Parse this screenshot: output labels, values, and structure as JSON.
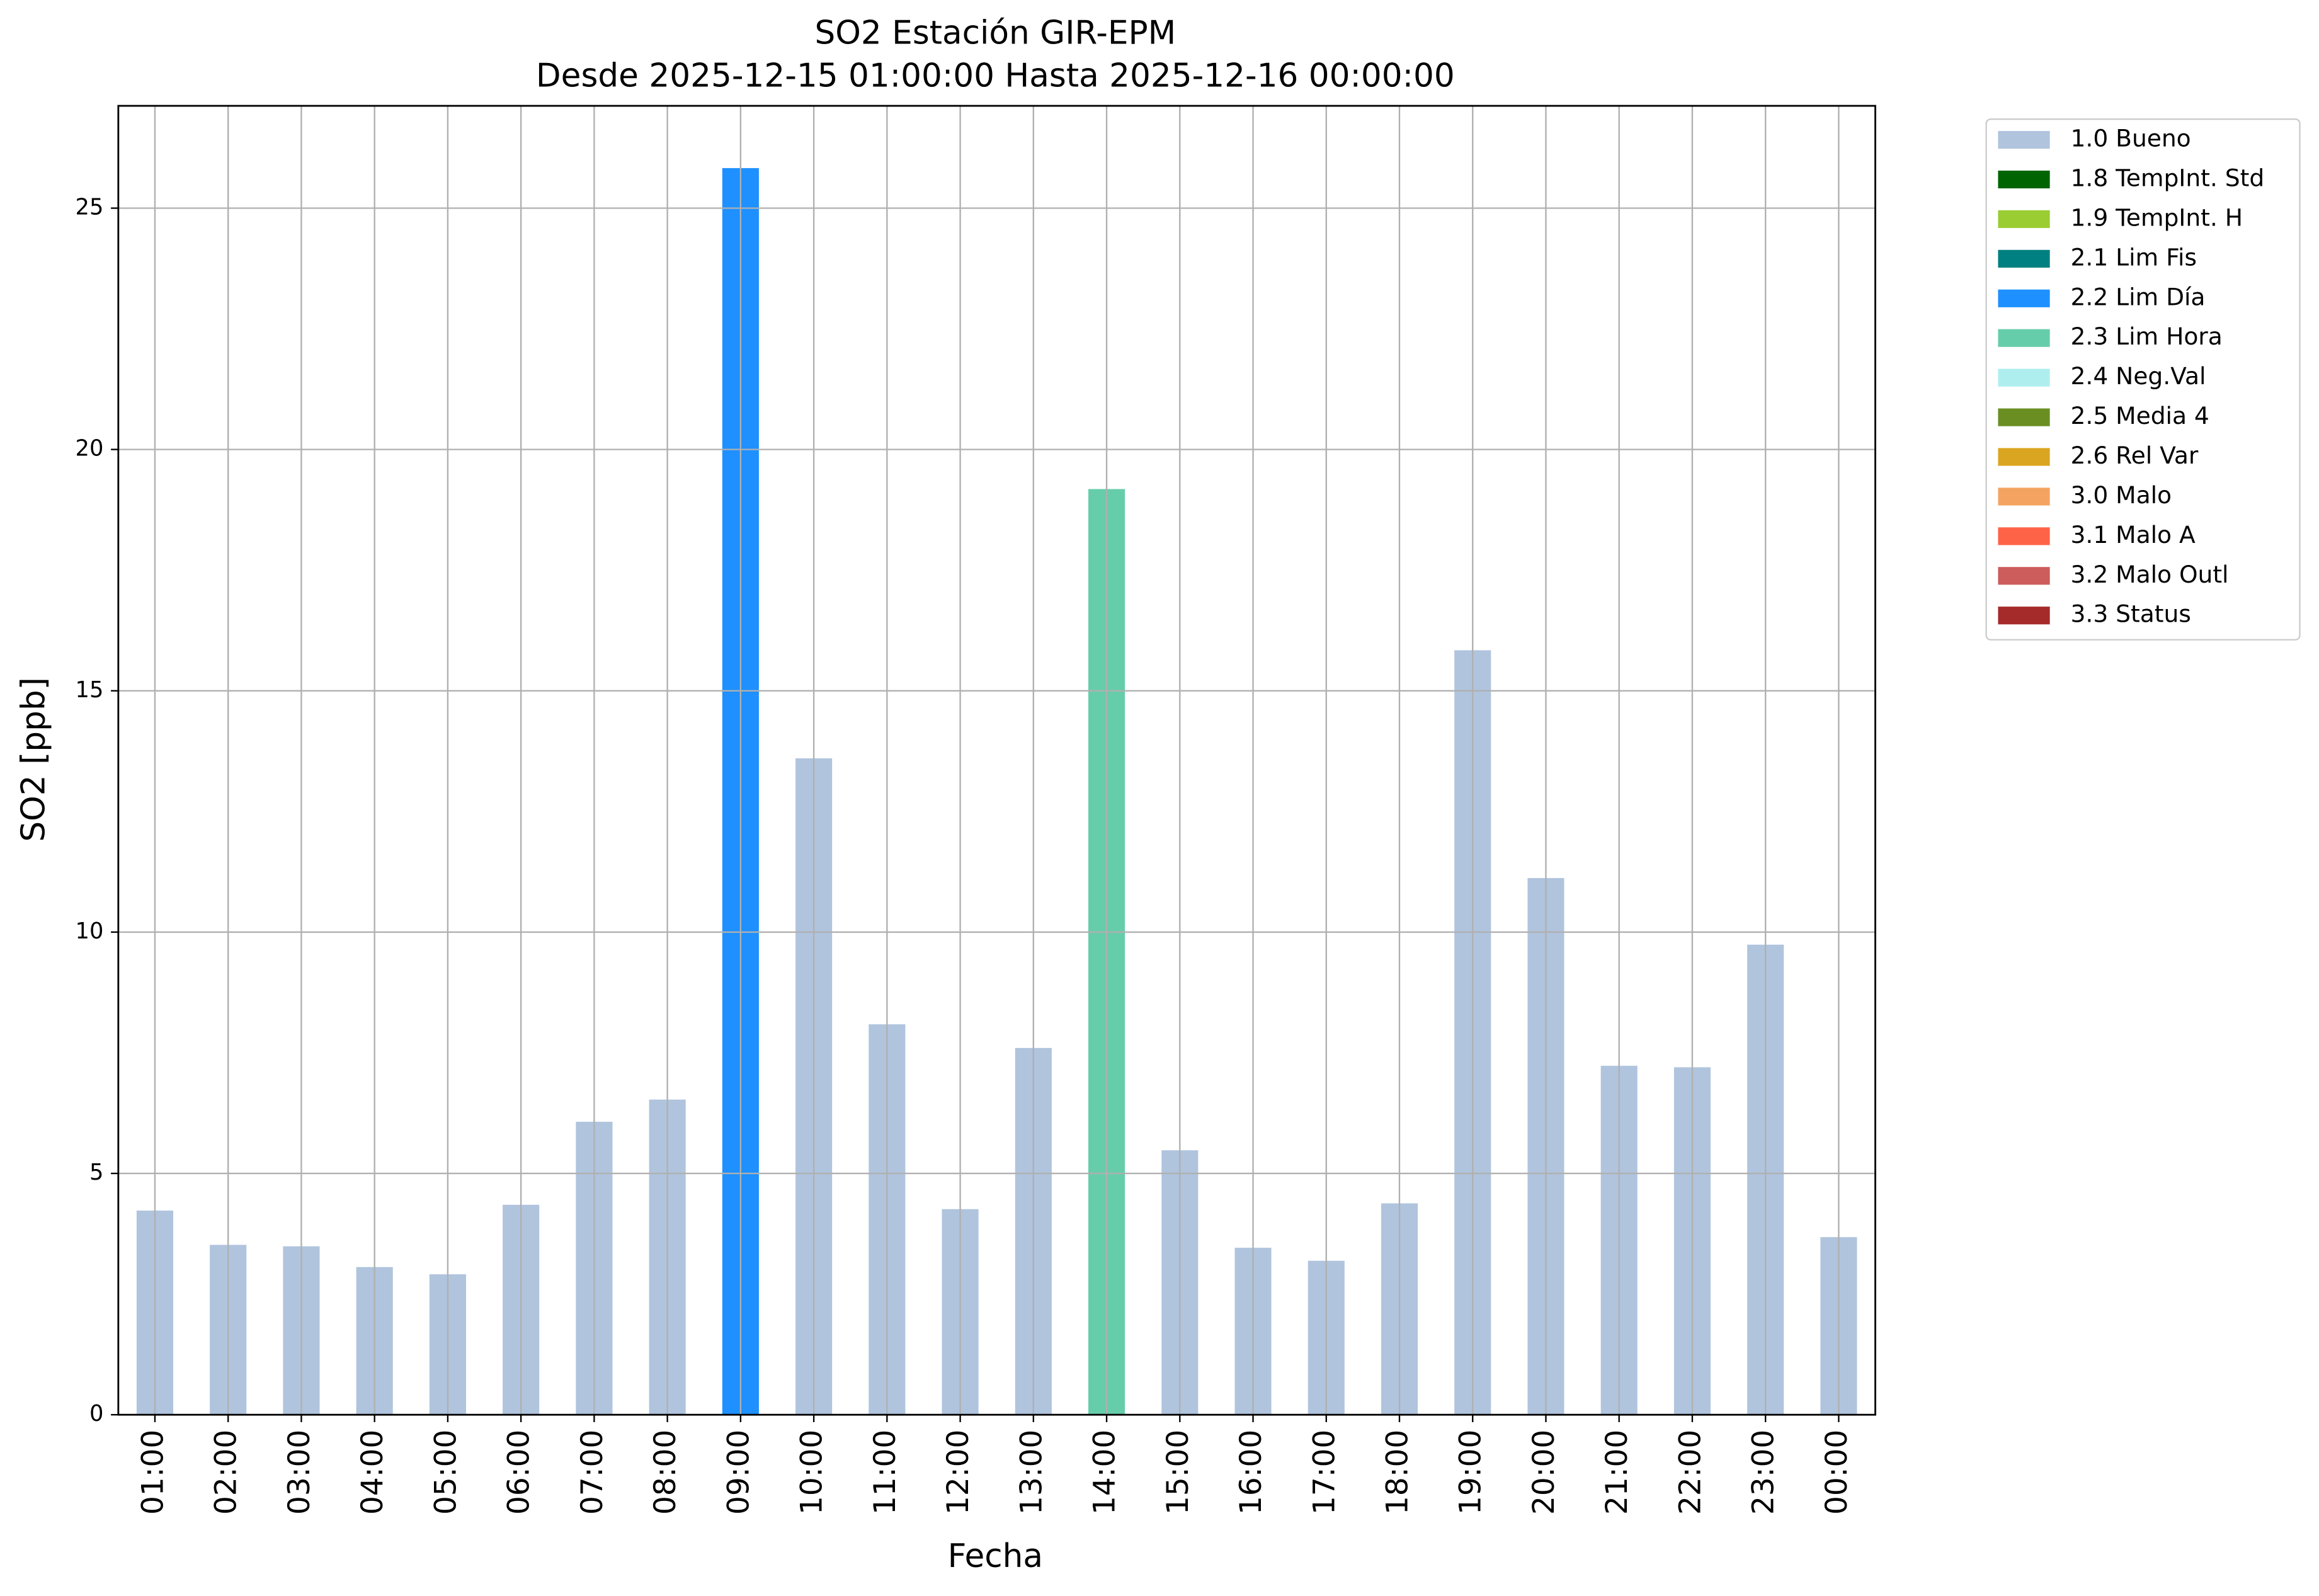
{
  "chart_data": {
    "type": "bar",
    "stacked": true,
    "title": "SO2 Estación GIR-EPM",
    "subtitle": "Desde 2025-12-15 01:00:00 Hasta 2025-12-16 00:00:00",
    "x_label": "Fecha",
    "y_label": "SO2 [ppb]",
    "categories": [
      "01:00",
      "02:00",
      "03:00",
      "04:00",
      "05:00",
      "06:00",
      "07:00",
      "08:00",
      "09:00",
      "10:00",
      "11:00",
      "12:00",
      "13:00",
      "14:00",
      "15:00",
      "16:00",
      "17:00",
      "18:00",
      "19:00",
      "20:00",
      "21:00",
      "22:00",
      "23:00",
      "00:00"
    ],
    "series": [
      {
        "name": "1.0 Bueno",
        "color": "#b0c4de",
        "values": [
          4.23,
          3.52,
          3.49,
          3.06,
          2.91,
          4.35,
          6.07,
          6.53,
          null,
          13.6,
          8.09,
          4.26,
          7.6,
          null,
          5.48,
          3.46,
          3.19,
          4.38,
          15.84,
          11.12,
          7.23,
          7.2,
          9.74,
          3.68
        ]
      },
      {
        "name": "1.8 TempInt. Std",
        "color": "#006400",
        "values": [
          null,
          null,
          null,
          null,
          null,
          null,
          null,
          null,
          null,
          null,
          null,
          null,
          null,
          null,
          null,
          null,
          null,
          null,
          null,
          null,
          null,
          null,
          null,
          null
        ]
      },
      {
        "name": "1.9 TempInt. H",
        "color": "#9acd32",
        "values": [
          null,
          null,
          null,
          null,
          null,
          null,
          null,
          null,
          null,
          null,
          null,
          null,
          null,
          null,
          null,
          null,
          null,
          null,
          null,
          null,
          null,
          null,
          null,
          null
        ]
      },
      {
        "name": "2.1 Lim Fis",
        "color": "#008080",
        "values": [
          null,
          null,
          null,
          null,
          null,
          null,
          null,
          null,
          null,
          null,
          null,
          null,
          null,
          null,
          null,
          null,
          null,
          null,
          null,
          null,
          null,
          null,
          null,
          null
        ]
      },
      {
        "name": "2.2 Lim Día",
        "color": "#1e90ff",
        "values": [
          null,
          null,
          null,
          null,
          null,
          null,
          null,
          null,
          25.83,
          null,
          null,
          null,
          null,
          null,
          null,
          null,
          null,
          null,
          null,
          null,
          null,
          null,
          null,
          null
        ]
      },
      {
        "name": "2.3 Lim Hora",
        "color": "#66cdaa",
        "values": [
          null,
          null,
          null,
          null,
          null,
          null,
          null,
          null,
          null,
          null,
          null,
          null,
          null,
          19.18,
          null,
          null,
          null,
          null,
          null,
          null,
          null,
          null,
          null,
          null
        ]
      },
      {
        "name": "2.4 Neg.Val",
        "color": "#afeeee",
        "values": [
          null,
          null,
          null,
          null,
          null,
          null,
          null,
          null,
          null,
          null,
          null,
          null,
          null,
          null,
          null,
          null,
          null,
          null,
          null,
          null,
          null,
          null,
          null,
          null
        ]
      },
      {
        "name": "2.5 Media 4",
        "color": "#6b8e23",
        "values": [
          null,
          null,
          null,
          null,
          null,
          null,
          null,
          null,
          null,
          null,
          null,
          null,
          null,
          null,
          null,
          null,
          null,
          null,
          null,
          null,
          null,
          null,
          null,
          null
        ]
      },
      {
        "name": "2.6 Rel Var",
        "color": "#daa520",
        "values": [
          null,
          null,
          null,
          null,
          null,
          null,
          null,
          null,
          null,
          null,
          null,
          null,
          null,
          null,
          null,
          null,
          null,
          null,
          null,
          null,
          null,
          null,
          null,
          null
        ]
      },
      {
        "name": "3.0 Malo",
        "color": "#f4a460",
        "values": [
          null,
          null,
          null,
          null,
          null,
          null,
          null,
          null,
          null,
          null,
          null,
          null,
          null,
          null,
          null,
          null,
          null,
          null,
          null,
          null,
          null,
          null,
          null,
          null
        ]
      },
      {
        "name": "3.1 Malo A",
        "color": "#ff6347",
        "values": [
          null,
          null,
          null,
          null,
          null,
          null,
          null,
          null,
          null,
          null,
          null,
          null,
          null,
          null,
          null,
          null,
          null,
          null,
          null,
          null,
          null,
          null,
          null,
          null
        ]
      },
      {
        "name": "3.2 Malo Outl",
        "color": "#cd5c5c",
        "values": [
          null,
          null,
          null,
          null,
          null,
          null,
          null,
          null,
          null,
          null,
          null,
          null,
          null,
          null,
          null,
          null,
          null,
          null,
          null,
          null,
          null,
          null,
          null,
          null
        ]
      },
      {
        "name": "3.3 Status",
        "color": "#a52a2a",
        "values": [
          null,
          null,
          null,
          null,
          null,
          null,
          null,
          null,
          null,
          null,
          null,
          null,
          null,
          null,
          null,
          null,
          null,
          null,
          null,
          null,
          null,
          null,
          null,
          null
        ]
      }
    ],
    "ylim": [
      0,
      27.12
    ],
    "yticks": [
      0,
      5,
      10,
      15,
      20,
      25
    ],
    "grid": true,
    "legend": "outside-right"
  }
}
